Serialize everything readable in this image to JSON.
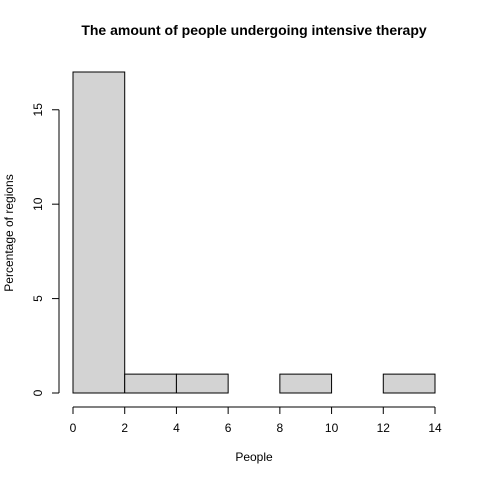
{
  "chart_data": {
    "type": "bar",
    "title": "The amount of people undergoing intensive therapy",
    "xlabel": "People",
    "ylabel": "Percentage of regions",
    "bins": [
      [
        0,
        2
      ],
      [
        2,
        4
      ],
      [
        4,
        6
      ],
      [
        6,
        8
      ],
      [
        8,
        10
      ],
      [
        10,
        12
      ],
      [
        12,
        14
      ]
    ],
    "values": [
      17,
      1,
      1,
      0,
      1,
      0,
      1
    ],
    "xlim": [
      0,
      14
    ],
    "ylim": [
      0,
      17
    ],
    "x_ticks": [
      0,
      2,
      4,
      6,
      8,
      10,
      12,
      14
    ],
    "y_ticks": [
      0,
      5,
      10,
      15
    ],
    "grid": false,
    "bar_fill": "#d3d3d3",
    "bar_stroke": "#000000"
  }
}
